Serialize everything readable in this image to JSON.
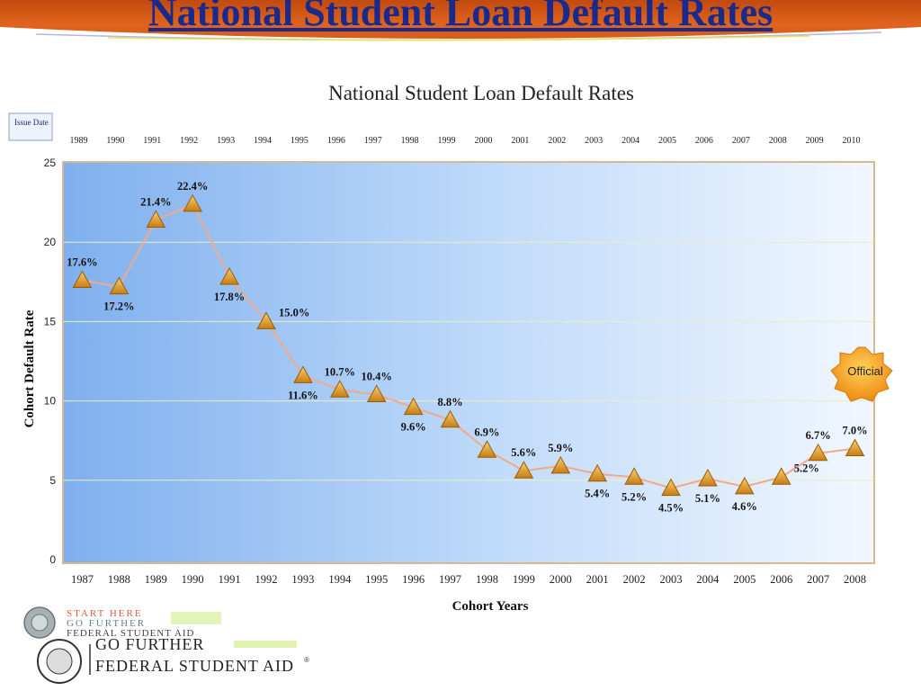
{
  "slide": {
    "title": "National Student Loan Default Rates"
  },
  "chart_data": {
    "type": "line",
    "title": "National Student Loan Default Rates",
    "xlabel": "Cohort Years",
    "ylabel": "Cohort Default Rate",
    "ylim": [
      0,
      25
    ],
    "yticks": [
      0,
      5,
      10,
      15,
      20,
      25
    ],
    "grid": true,
    "categories": [
      "1987",
      "1988",
      "1989",
      "1990",
      "1991",
      "1992",
      "1993",
      "1994",
      "1995",
      "1996",
      "1997",
      "1998",
      "1999",
      "2000",
      "2001",
      "2002",
      "2003",
      "2004",
      "2005",
      "2006",
      "2007",
      "2008"
    ],
    "issue_date_label": "Issue Date",
    "issue_dates": [
      "1989",
      "1990",
      "1991",
      "1992",
      "1993",
      "1994",
      "1995",
      "1996",
      "1997",
      "1998",
      "1999",
      "2000",
      "2001",
      "2002",
      "2003",
      "2004",
      "2005",
      "2006",
      "2007",
      "2008",
      "2009",
      "2010"
    ],
    "series": [
      {
        "values": [
          17.6,
          17.2,
          21.4,
          22.4,
          17.8,
          15.0,
          11.6,
          10.7,
          10.4,
          9.6,
          8.8,
          6.9,
          5.6,
          5.9,
          5.4,
          5.2,
          4.5,
          5.1,
          4.6,
          5.2,
          6.7,
          7.0
        ],
        "labels": [
          "17.6%",
          "17.2%",
          "21.4%",
          "22.4%",
          "17.8%",
          "15.0%",
          "11.6%",
          "10.7%",
          "10.4%",
          "9.6%",
          "8.8%",
          "6.9%",
          "5.6%",
          "5.9%",
          "5.4%",
          "5.2%",
          "4.5%",
          "5.1%",
          "4.6%",
          "5.2%",
          "6.7%",
          "7.0%"
        ],
        "label_position": [
          "above",
          "below",
          "above",
          "above",
          "below",
          "right",
          "below",
          "above",
          "above",
          "below",
          "above",
          "above",
          "above",
          "above",
          "below",
          "below",
          "below",
          "below",
          "below",
          "right",
          "above",
          "above"
        ]
      }
    ],
    "annotations": [
      "Official"
    ],
    "colors": {
      "plot_bg_left": "#7fb0ee",
      "plot_bg_right": "#f1f7ff",
      "line": "#f2a98a",
      "marker": "#e6a12a",
      "grid": "#e9edc2",
      "badge": "#f39a1c"
    }
  },
  "footer": {
    "logo_line1": "START HERE",
    "logo_line2": "GO FURTHER",
    "logo_line3": "FEDERAL STUDENT AID",
    "logo_big_line1": "GO FURTHER",
    "logo_big_line2": "FEDERAL STUDENT AID",
    "registered_mark": "®"
  }
}
